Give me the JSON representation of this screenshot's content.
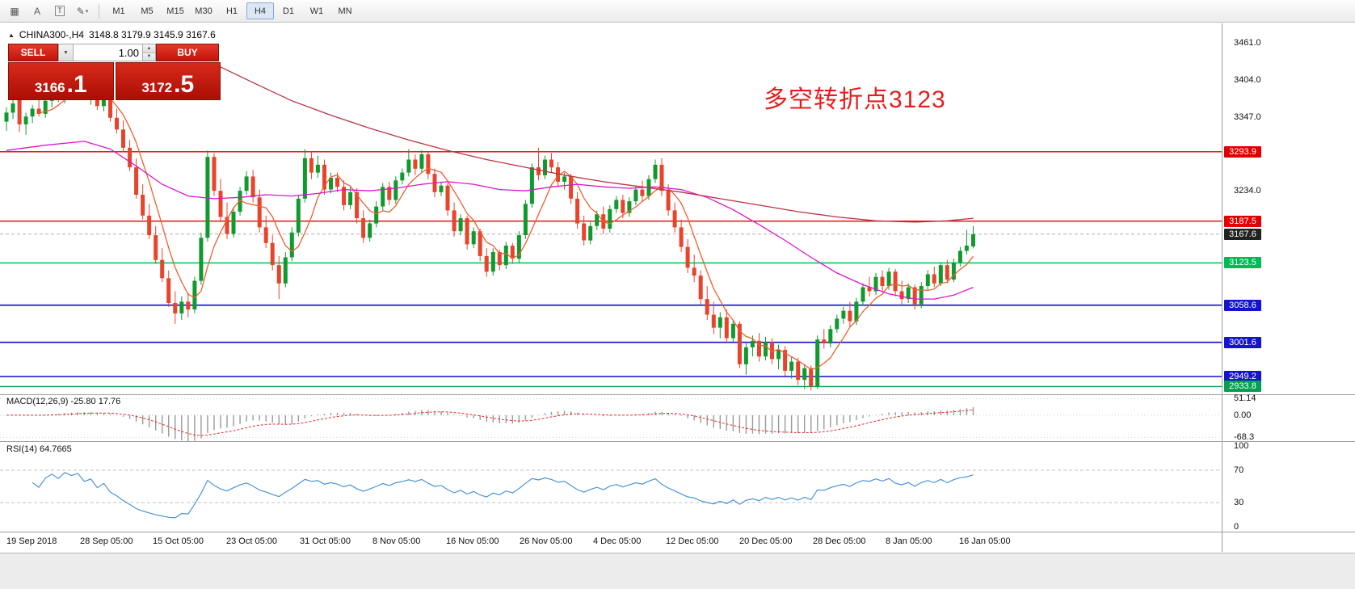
{
  "toolbar": {
    "icons": [
      {
        "name": "chart-grid-icon",
        "glyph": "▦"
      },
      {
        "name": "text-label-icon",
        "glyph": "A"
      },
      {
        "name": "text-tool-icon",
        "glyph": "T"
      },
      {
        "name": "draw-tools-icon",
        "glyph": "✎"
      },
      {
        "name": "dropdown-arrow-icon",
        "glyph": "▾"
      }
    ],
    "timeframes": [
      "M1",
      "M5",
      "M15",
      "M30",
      "H1",
      "H4",
      "D1",
      "W1",
      "MN"
    ],
    "active_timeframe": "H4"
  },
  "chart_header": {
    "marker": "▲",
    "symbol": "CHINA300-,H4",
    "ohlc": "3148.8 3179.9 3145.9 3167.6"
  },
  "trade_panel": {
    "sell_label": "SELL",
    "buy_label": "BUY",
    "volume": "1.00",
    "dropdown_glyph": "▼",
    "spin_up_glyph": "▲",
    "spin_down_glyph": "▼",
    "sell_price": "3166.1",
    "sell_price_small": "3166",
    "sell_price_big": ".1",
    "buy_price": "3172.5",
    "buy_price_small": "3172",
    "buy_price_big": ".5"
  },
  "annotation": {
    "text": "多空转折点3123",
    "color": "#e81c1c"
  },
  "indicators": {
    "macd": {
      "label": "MACD(12,26,9) -25.80 17.76",
      "axis": [
        {
          "label": "51.14",
          "value": 51.14
        },
        {
          "label": "0.00",
          "value": 0
        },
        {
          "label": "-68.3",
          "value": -68.3
        }
      ]
    },
    "rsi": {
      "label": "RSI(14) 64.7665",
      "axis": [
        {
          "label": "100",
          "value": 100
        },
        {
          "label": "70",
          "value": 70
        },
        {
          "label": "30",
          "value": 30
        },
        {
          "label": "0",
          "value": 0
        }
      ]
    }
  },
  "price_axis": {
    "plain": [
      {
        "label": "3461.0",
        "price": 3461.0
      },
      {
        "label": "3404.0",
        "price": 3404.0
      },
      {
        "label": "3347.0",
        "price": 3347.0
      },
      {
        "label": "3234.0",
        "price": 3234.0
      }
    ],
    "badges": [
      {
        "label": "3293.9",
        "price": 3293.9,
        "color": "#e00000"
      },
      {
        "label": "3187.5",
        "price": 3187.5,
        "color": "#e00000"
      },
      {
        "label": "3167.6",
        "price": 3167.6,
        "color": "#222222"
      },
      {
        "label": "3123.5",
        "price": 3123.5,
        "color": "#00bb55"
      },
      {
        "label": "3058.6",
        "price": 3058.6,
        "color": "#1414cc"
      },
      {
        "label": "3001.6",
        "price": 3001.6,
        "color": "#1414cc"
      },
      {
        "label": "2949.2",
        "price": 2949.2,
        "color": "#1414cc"
      },
      {
        "label": "2933.8",
        "price": 2933.8,
        "color": "#00a050"
      }
    ]
  },
  "time_axis": [
    "19 Sep 2018",
    "28 Sep 05:00",
    "15 Oct 05:00",
    "23 Oct 05:00",
    "31 Oct 05:00",
    "8 Nov 05:00",
    "16 Nov 05:00",
    "26 Nov 05:00",
    "4 Dec 05:00",
    "12 Dec 05:00",
    "20 Dec 05:00",
    "28 Dec 05:00",
    "8 Jan 05:00",
    "16 Jan 05:00"
  ],
  "chart_data": {
    "type": "candlestick",
    "symbol": "CHINA300-",
    "timeframe": "H4",
    "current_bar": {
      "open": 3148.8,
      "high": 3179.9,
      "low": 3145.9,
      "close": 3167.6
    },
    "ylim": [
      2922,
      3489
    ],
    "colors": {
      "up": "#109a2e",
      "down": "#e8432b",
      "ma_short": "#ee5f2e",
      "ma_mid": "#dd14cc",
      "ma_long": "#bb3347",
      "rsi_line": "#4a94d8",
      "macd_hist": "#9a9a9a",
      "macd_signal": "#e03030"
    },
    "hlines": [
      {
        "price": 3293.9,
        "color": "#e00000",
        "width": 1.4
      },
      {
        "price": 3187.5,
        "color": "#e00000",
        "width": 1.4
      },
      {
        "price": 3167.6,
        "color": "#b0b0b0",
        "width": 1,
        "dash": "4 3"
      },
      {
        "price": 3123.5,
        "color": "#00cc55",
        "width": 1.6
      },
      {
        "price": 3058.6,
        "color": "#0f0fd0",
        "width": 1.6
      },
      {
        "price": 3001.6,
        "color": "#0f0fd0",
        "width": 1.6
      },
      {
        "price": 2949.2,
        "color": "#0f0fd0",
        "width": 1.6
      },
      {
        "price": 2933.8,
        "color": "#00a050",
        "width": 1.4
      }
    ],
    "candles": [
      [
        3340,
        3362,
        3326,
        3354
      ],
      [
        3354,
        3376,
        3344,
        3368
      ],
      [
        3415,
        3428,
        3324,
        3336
      ],
      [
        3336,
        3354,
        3320,
        3348
      ],
      [
        3348,
        3366,
        3338,
        3360
      ],
      [
        3360,
        3374,
        3348,
        3352
      ],
      [
        3352,
        3378,
        3346,
        3372
      ],
      [
        3372,
        3390,
        3362,
        3384
      ],
      [
        3384,
        3398,
        3370,
        3376
      ],
      [
        3376,
        3402,
        3368,
        3396
      ],
      [
        3396,
        3408,
        3382,
        3390
      ],
      [
        3390,
        3404,
        3376,
        3398
      ],
      [
        3398,
        3406,
        3374,
        3380
      ],
      [
        3380,
        3396,
        3366,
        3388
      ],
      [
        3388,
        3394,
        3358,
        3364
      ],
      [
        3364,
        3386,
        3356,
        3378
      ],
      [
        3378,
        3384,
        3340,
        3346
      ],
      [
        3346,
        3360,
        3322,
        3328
      ],
      [
        3328,
        3342,
        3294,
        3300
      ],
      [
        3300,
        3312,
        3264,
        3270
      ],
      [
        3270,
        3284,
        3222,
        3228
      ],
      [
        3228,
        3244,
        3190,
        3196
      ],
      [
        3196,
        3214,
        3160,
        3166
      ],
      [
        3166,
        3180,
        3122,
        3128
      ],
      [
        3128,
        3146,
        3094,
        3100
      ],
      [
        3100,
        3112,
        3056,
        3062
      ],
      [
        3062,
        3080,
        3030,
        3046
      ],
      [
        3046,
        3072,
        3036,
        3064
      ],
      [
        3064,
        3078,
        3040,
        3052
      ],
      [
        3052,
        3102,
        3046,
        3096
      ],
      [
        3096,
        3170,
        3090,
        3162
      ],
      [
        3162,
        3296,
        3156,
        3286
      ],
      [
        3286,
        3292,
        3226,
        3234
      ],
      [
        3234,
        3252,
        3186,
        3194
      ],
      [
        3194,
        3216,
        3160,
        3168
      ],
      [
        3168,
        3208,
        3162,
        3202
      ],
      [
        3202,
        3240,
        3196,
        3234
      ],
      [
        3234,
        3264,
        3228,
        3256
      ],
      [
        3256,
        3266,
        3216,
        3224
      ],
      [
        3224,
        3236,
        3170,
        3178
      ],
      [
        3178,
        3196,
        3146,
        3154
      ],
      [
        3154,
        3166,
        3112,
        3120
      ],
      [
        3120,
        3134,
        3068,
        3092
      ],
      [
        3092,
        3140,
        3086,
        3132
      ],
      [
        3132,
        3178,
        3126,
        3170
      ],
      [
        3170,
        3228,
        3164,
        3222
      ],
      [
        3222,
        3298,
        3216,
        3284
      ],
      [
        3284,
        3294,
        3252,
        3262
      ],
      [
        3262,
        3288,
        3254,
        3274
      ],
      [
        3274,
        3282,
        3228,
        3236
      ],
      [
        3236,
        3262,
        3230,
        3254
      ],
      [
        3254,
        3262,
        3232,
        3240
      ],
      [
        3240,
        3250,
        3204,
        3212
      ],
      [
        3212,
        3240,
        3206,
        3232
      ],
      [
        3232,
        3238,
        3184,
        3192
      ],
      [
        3192,
        3204,
        3154,
        3162
      ],
      [
        3162,
        3190,
        3156,
        3184
      ],
      [
        3184,
        3218,
        3178,
        3210
      ],
      [
        3210,
        3246,
        3204,
        3240
      ],
      [
        3240,
        3248,
        3212,
        3220
      ],
      [
        3220,
        3256,
        3214,
        3250
      ],
      [
        3250,
        3268,
        3244,
        3262
      ],
      [
        3262,
        3298,
        3256,
        3282
      ],
      [
        3282,
        3290,
        3258,
        3268
      ],
      [
        3268,
        3296,
        3262,
        3290
      ],
      [
        3290,
        3294,
        3252,
        3260
      ],
      [
        3260,
        3268,
        3224,
        3232
      ],
      [
        3232,
        3248,
        3226,
        3242
      ],
      [
        3242,
        3246,
        3196,
        3204
      ],
      [
        3204,
        3216,
        3164,
        3172
      ],
      [
        3172,
        3198,
        3166,
        3192
      ],
      [
        3192,
        3196,
        3144,
        3152
      ],
      [
        3152,
        3178,
        3146,
        3172
      ],
      [
        3172,
        3176,
        3126,
        3134
      ],
      [
        3134,
        3146,
        3102,
        3110
      ],
      [
        3110,
        3146,
        3104,
        3140
      ],
      [
        3140,
        3144,
        3112,
        3120
      ],
      [
        3120,
        3156,
        3114,
        3150
      ],
      [
        3150,
        3154,
        3122,
        3130
      ],
      [
        3130,
        3172,
        3124,
        3166
      ],
      [
        3166,
        3220,
        3160,
        3214
      ],
      [
        3214,
        3276,
        3208,
        3270
      ],
      [
        3270,
        3300,
        3250,
        3258
      ],
      [
        3258,
        3288,
        3252,
        3282
      ],
      [
        3282,
        3292,
        3262,
        3270
      ],
      [
        3270,
        3278,
        3240,
        3248
      ],
      [
        3248,
        3262,
        3236,
        3256
      ],
      [
        3256,
        3260,
        3214,
        3222
      ],
      [
        3222,
        3232,
        3176,
        3184
      ],
      [
        3184,
        3196,
        3150,
        3158
      ],
      [
        3158,
        3186,
        3152,
        3180
      ],
      [
        3180,
        3204,
        3174,
        3198
      ],
      [
        3198,
        3210,
        3168,
        3176
      ],
      [
        3176,
        3212,
        3170,
        3206
      ],
      [
        3206,
        3226,
        3200,
        3220
      ],
      [
        3220,
        3228,
        3192,
        3200
      ],
      [
        3200,
        3224,
        3194,
        3218
      ],
      [
        3218,
        3242,
        3212,
        3236
      ],
      [
        3236,
        3250,
        3218,
        3226
      ],
      [
        3226,
        3258,
        3220,
        3252
      ],
      [
        3252,
        3282,
        3246,
        3274
      ],
      [
        3274,
        3284,
        3226,
        3234
      ],
      [
        3234,
        3244,
        3196,
        3204
      ],
      [
        3204,
        3216,
        3170,
        3178
      ],
      [
        3178,
        3190,
        3140,
        3148
      ],
      [
        3148,
        3160,
        3108,
        3116
      ],
      [
        3116,
        3136,
        3094,
        3104
      ],
      [
        3104,
        3112,
        3060,
        3068
      ],
      [
        3068,
        3088,
        3036,
        3044
      ],
      [
        3044,
        3064,
        3014,
        3024
      ],
      [
        3024,
        3048,
        3008,
        3040
      ],
      [
        3040,
        3052,
        3000,
        3008
      ],
      [
        3008,
        3036,
        3002,
        3030
      ],
      [
        3030,
        3034,
        2962,
        2968
      ],
      [
        2968,
        3000,
        2952,
        2994
      ],
      [
        2994,
        3012,
        2980,
        3004
      ],
      [
        3004,
        3016,
        2972,
        2980
      ],
      [
        2980,
        3010,
        2974,
        3002
      ],
      [
        3002,
        3008,
        2968,
        2976
      ],
      [
        2976,
        2998,
        2960,
        2990
      ],
      [
        2990,
        2996,
        2950,
        2958
      ],
      [
        2958,
        2980,
        2946,
        2972
      ],
      [
        2972,
        2978,
        2936,
        2944
      ],
      [
        2944,
        2968,
        2930,
        2962
      ],
      [
        2962,
        2966,
        2928,
        2934
      ],
      [
        2934,
        3012,
        2930,
        3006
      ],
      [
        3006,
        3022,
        2992,
        3000
      ],
      [
        3000,
        3028,
        2994,
        3022
      ],
      [
        3022,
        3044,
        3016,
        3038
      ],
      [
        3038,
        3056,
        3030,
        3050
      ],
      [
        3050,
        3064,
        3026,
        3034
      ],
      [
        3034,
        3070,
        3028,
        3064
      ],
      [
        3064,
        3092,
        3058,
        3086
      ],
      [
        3086,
        3102,
        3072,
        3080
      ],
      [
        3080,
        3108,
        3074,
        3102
      ],
      [
        3102,
        3112,
        3080,
        3088
      ],
      [
        3088,
        3116,
        3082,
        3110
      ],
      [
        3110,
        3114,
        3072,
        3080
      ],
      [
        3080,
        3096,
        3060,
        3068
      ],
      [
        3068,
        3092,
        3062,
        3086
      ],
      [
        3086,
        3090,
        3052,
        3060
      ],
      [
        3060,
        3094,
        3054,
        3088
      ],
      [
        3088,
        3112,
        3082,
        3106
      ],
      [
        3106,
        3118,
        3086,
        3092
      ],
      [
        3092,
        3124,
        3088,
        3120
      ],
      [
        3120,
        3128,
        3092,
        3098
      ],
      [
        3098,
        3130,
        3094,
        3124
      ],
      [
        3124,
        3148,
        3118,
        3142
      ],
      [
        3142,
        3174,
        3136,
        3150
      ],
      [
        3148.8,
        3179.9,
        3145.9,
        3167.6
      ]
    ],
    "ma_short": {
      "type": "sma",
      "period": 6
    },
    "ma_mid_waypoints": [
      [
        0,
        3296
      ],
      [
        6,
        3304
      ],
      [
        12,
        3310
      ],
      [
        16,
        3298
      ],
      [
        20,
        3272
      ],
      [
        24,
        3244
      ],
      [
        28,
        3226
      ],
      [
        32,
        3222
      ],
      [
        36,
        3224
      ],
      [
        40,
        3228
      ],
      [
        44,
        3226
      ],
      [
        48,
        3230
      ],
      [
        52,
        3236
      ],
      [
        56,
        3234
      ],
      [
        60,
        3238
      ],
      [
        64,
        3244
      ],
      [
        68,
        3248
      ],
      [
        72,
        3244
      ],
      [
        76,
        3236
      ],
      [
        80,
        3234
      ],
      [
        84,
        3240
      ],
      [
        88,
        3244
      ],
      [
        92,
        3240
      ],
      [
        96,
        3238
      ],
      [
        100,
        3240
      ],
      [
        104,
        3236
      ],
      [
        108,
        3224
      ],
      [
        112,
        3205
      ],
      [
        116,
        3182
      ],
      [
        120,
        3158
      ],
      [
        124,
        3132
      ],
      [
        128,
        3108
      ],
      [
        132,
        3090
      ],
      [
        136,
        3076
      ],
      [
        140,
        3068
      ],
      [
        143,
        3068
      ],
      [
        146,
        3074
      ],
      [
        149,
        3086
      ]
    ],
    "ma_long_waypoints": [
      [
        33,
        3424
      ],
      [
        38,
        3400
      ],
      [
        44,
        3372
      ],
      [
        50,
        3350
      ],
      [
        56,
        3330
      ],
      [
        62,
        3312
      ],
      [
        68,
        3296
      ],
      [
        74,
        3282
      ],
      [
        80,
        3270
      ],
      [
        86,
        3258
      ],
      [
        92,
        3248
      ],
      [
        98,
        3240
      ],
      [
        104,
        3232
      ],
      [
        110,
        3222
      ],
      [
        116,
        3212
      ],
      [
        122,
        3202
      ],
      [
        128,
        3194
      ],
      [
        134,
        3188
      ],
      [
        140,
        3186
      ],
      [
        145,
        3188
      ],
      [
        149,
        3192
      ]
    ],
    "macd": {
      "params": [
        12,
        26,
        9
      ],
      "current_values": "-25.80 17.76",
      "axis_range": [
        -68.3,
        51.14
      ]
    },
    "rsi": {
      "period": 14,
      "current_value": 64.7665,
      "levels": [
        70,
        30
      ]
    }
  }
}
